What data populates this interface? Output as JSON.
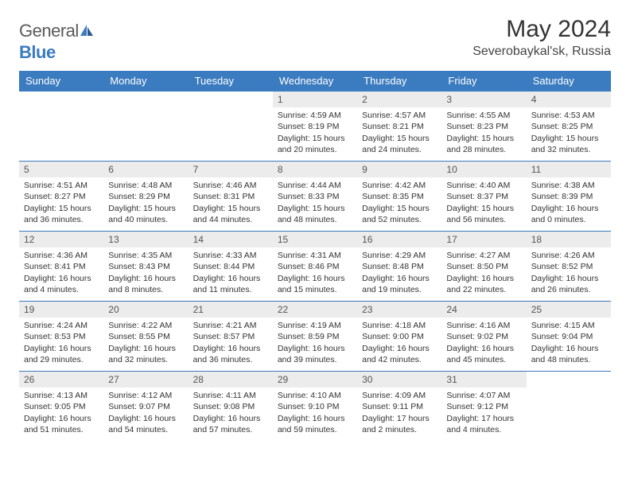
{
  "brand": {
    "part1": "General",
    "part2": "Blue"
  },
  "title": "May 2024",
  "location": "Severobaykal'sk, Russia",
  "colors": {
    "header_bg": "#3b7bbf",
    "header_text": "#ffffff",
    "daynum_bg": "#ececec",
    "border": "#3b7bbf",
    "brand_blue": "#3b7bbf",
    "brand_grey": "#5a5a5a"
  },
  "weekdays": [
    "Sunday",
    "Monday",
    "Tuesday",
    "Wednesday",
    "Thursday",
    "Friday",
    "Saturday"
  ],
  "weeks": [
    [
      null,
      null,
      null,
      {
        "n": "1",
        "sr": "4:59 AM",
        "ss": "8:19 PM",
        "dl": "15 hours and 20 minutes."
      },
      {
        "n": "2",
        "sr": "4:57 AM",
        "ss": "8:21 PM",
        "dl": "15 hours and 24 minutes."
      },
      {
        "n": "3",
        "sr": "4:55 AM",
        "ss": "8:23 PM",
        "dl": "15 hours and 28 minutes."
      },
      {
        "n": "4",
        "sr": "4:53 AM",
        "ss": "8:25 PM",
        "dl": "15 hours and 32 minutes."
      }
    ],
    [
      {
        "n": "5",
        "sr": "4:51 AM",
        "ss": "8:27 PM",
        "dl": "15 hours and 36 minutes."
      },
      {
        "n": "6",
        "sr": "4:48 AM",
        "ss": "8:29 PM",
        "dl": "15 hours and 40 minutes."
      },
      {
        "n": "7",
        "sr": "4:46 AM",
        "ss": "8:31 PM",
        "dl": "15 hours and 44 minutes."
      },
      {
        "n": "8",
        "sr": "4:44 AM",
        "ss": "8:33 PM",
        "dl": "15 hours and 48 minutes."
      },
      {
        "n": "9",
        "sr": "4:42 AM",
        "ss": "8:35 PM",
        "dl": "15 hours and 52 minutes."
      },
      {
        "n": "10",
        "sr": "4:40 AM",
        "ss": "8:37 PM",
        "dl": "15 hours and 56 minutes."
      },
      {
        "n": "11",
        "sr": "4:38 AM",
        "ss": "8:39 PM",
        "dl": "16 hours and 0 minutes."
      }
    ],
    [
      {
        "n": "12",
        "sr": "4:36 AM",
        "ss": "8:41 PM",
        "dl": "16 hours and 4 minutes."
      },
      {
        "n": "13",
        "sr": "4:35 AM",
        "ss": "8:43 PM",
        "dl": "16 hours and 8 minutes."
      },
      {
        "n": "14",
        "sr": "4:33 AM",
        "ss": "8:44 PM",
        "dl": "16 hours and 11 minutes."
      },
      {
        "n": "15",
        "sr": "4:31 AM",
        "ss": "8:46 PM",
        "dl": "16 hours and 15 minutes."
      },
      {
        "n": "16",
        "sr": "4:29 AM",
        "ss": "8:48 PM",
        "dl": "16 hours and 19 minutes."
      },
      {
        "n": "17",
        "sr": "4:27 AM",
        "ss": "8:50 PM",
        "dl": "16 hours and 22 minutes."
      },
      {
        "n": "18",
        "sr": "4:26 AM",
        "ss": "8:52 PM",
        "dl": "16 hours and 26 minutes."
      }
    ],
    [
      {
        "n": "19",
        "sr": "4:24 AM",
        "ss": "8:53 PM",
        "dl": "16 hours and 29 minutes."
      },
      {
        "n": "20",
        "sr": "4:22 AM",
        "ss": "8:55 PM",
        "dl": "16 hours and 32 minutes."
      },
      {
        "n": "21",
        "sr": "4:21 AM",
        "ss": "8:57 PM",
        "dl": "16 hours and 36 minutes."
      },
      {
        "n": "22",
        "sr": "4:19 AM",
        "ss": "8:59 PM",
        "dl": "16 hours and 39 minutes."
      },
      {
        "n": "23",
        "sr": "4:18 AM",
        "ss": "9:00 PM",
        "dl": "16 hours and 42 minutes."
      },
      {
        "n": "24",
        "sr": "4:16 AM",
        "ss": "9:02 PM",
        "dl": "16 hours and 45 minutes."
      },
      {
        "n": "25",
        "sr": "4:15 AM",
        "ss": "9:04 PM",
        "dl": "16 hours and 48 minutes."
      }
    ],
    [
      {
        "n": "26",
        "sr": "4:13 AM",
        "ss": "9:05 PM",
        "dl": "16 hours and 51 minutes."
      },
      {
        "n": "27",
        "sr": "4:12 AM",
        "ss": "9:07 PM",
        "dl": "16 hours and 54 minutes."
      },
      {
        "n": "28",
        "sr": "4:11 AM",
        "ss": "9:08 PM",
        "dl": "16 hours and 57 minutes."
      },
      {
        "n": "29",
        "sr": "4:10 AM",
        "ss": "9:10 PM",
        "dl": "16 hours and 59 minutes."
      },
      {
        "n": "30",
        "sr": "4:09 AM",
        "ss": "9:11 PM",
        "dl": "17 hours and 2 minutes."
      },
      {
        "n": "31",
        "sr": "4:07 AM",
        "ss": "9:12 PM",
        "dl": "17 hours and 4 minutes."
      },
      null
    ]
  ],
  "labels": {
    "sunrise": "Sunrise:",
    "sunset": "Sunset:",
    "daylight": "Daylight:"
  }
}
